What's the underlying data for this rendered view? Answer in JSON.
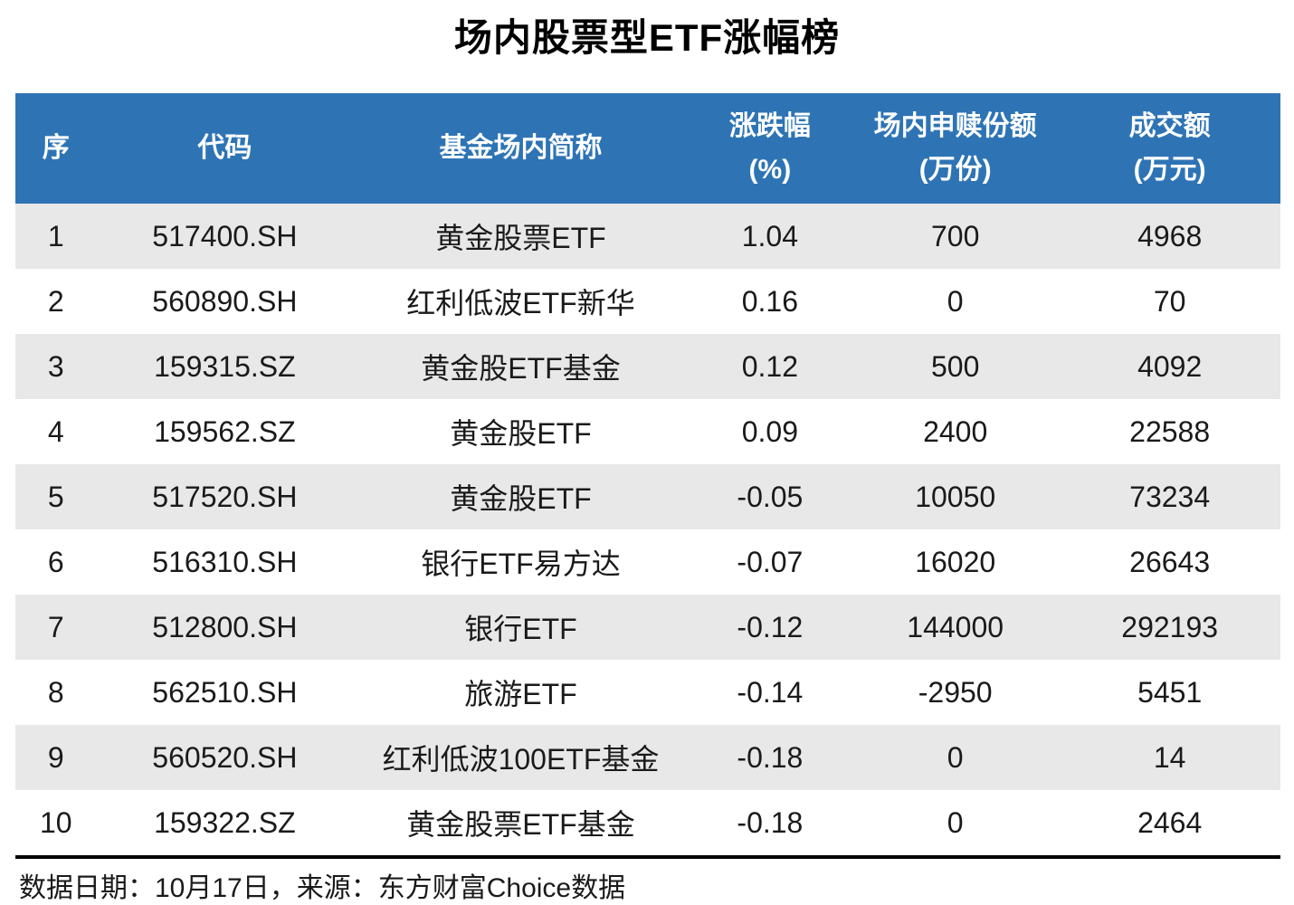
{
  "title": "场内股票型ETF涨幅榜",
  "colors": {
    "header_bg": "#2E74B5",
    "header_text": "#FFFFFF",
    "row_alt_bg": "#E8E8E8",
    "row_bg": "#FFFFFF"
  },
  "table": {
    "header": {
      "columns": [
        {
          "line1": "序",
          "line2": ""
        },
        {
          "line1": "代码",
          "line2": ""
        },
        {
          "line1": "基金场内简称",
          "line2": ""
        },
        {
          "line1": "涨跌幅",
          "line2": "(%)"
        },
        {
          "line1": "场内申赎份额",
          "line2": "(万份)"
        },
        {
          "line1": "成交额",
          "line2": "(万元)"
        }
      ]
    },
    "rows": [
      {
        "seq": "1",
        "code": "517400.SH",
        "name": "黄金股票ETF",
        "change": "1.04",
        "shares": "700",
        "turnover": "4968"
      },
      {
        "seq": "2",
        "code": "560890.SH",
        "name": "红利低波ETF新华",
        "change": "0.16",
        "shares": "0",
        "turnover": "70"
      },
      {
        "seq": "3",
        "code": "159315.SZ",
        "name": "黄金股ETF基金",
        "change": "0.12",
        "shares": "500",
        "turnover": "4092"
      },
      {
        "seq": "4",
        "code": "159562.SZ",
        "name": "黄金股ETF",
        "change": "0.09",
        "shares": "2400",
        "turnover": "22588"
      },
      {
        "seq": "5",
        "code": "517520.SH",
        "name": "黄金股ETF",
        "change": "-0.05",
        "shares": "10050",
        "turnover": "73234"
      },
      {
        "seq": "6",
        "code": "516310.SH",
        "name": "银行ETF易方达",
        "change": "-0.07",
        "shares": "16020",
        "turnover": "26643"
      },
      {
        "seq": "7",
        "code": "512800.SH",
        "name": "银行ETF",
        "change": "-0.12",
        "shares": "144000",
        "turnover": "292193"
      },
      {
        "seq": "8",
        "code": "562510.SH",
        "name": "旅游ETF",
        "change": "-0.14",
        "shares": "-2950",
        "turnover": "5451"
      },
      {
        "seq": "9",
        "code": "560520.SH",
        "name": "红利低波100ETF基金",
        "change": "-0.18",
        "shares": "0",
        "turnover": "14"
      },
      {
        "seq": "10",
        "code": "159322.SZ",
        "name": "黄金股票ETF基金",
        "change": "-0.18",
        "shares": "0",
        "turnover": "2464"
      }
    ]
  },
  "footer": {
    "source_text": "数据日期：10月17日，来源：东方财富Choice数据"
  },
  "chart_data": {
    "type": "table",
    "title": "场内股票型ETF涨幅榜",
    "columns": [
      "序",
      "代码",
      "基金场内简称",
      "涨跌幅(%)",
      "场内申赎份额(万份)",
      "成交额(万元)"
    ],
    "rows": [
      [
        1,
        "517400.SH",
        "黄金股票ETF",
        1.04,
        700,
        4968
      ],
      [
        2,
        "560890.SH",
        "红利低波ETF新华",
        0.16,
        0,
        70
      ],
      [
        3,
        "159315.SZ",
        "黄金股ETF基金",
        0.12,
        500,
        4092
      ],
      [
        4,
        "159562.SZ",
        "黄金股ETF",
        0.09,
        2400,
        22588
      ],
      [
        5,
        "517520.SH",
        "黄金股ETF",
        -0.05,
        10050,
        73234
      ],
      [
        6,
        "516310.SH",
        "银行ETF易方达",
        -0.07,
        16020,
        26643
      ],
      [
        7,
        "512800.SH",
        "银行ETF",
        -0.12,
        144000,
        292193
      ],
      [
        8,
        "562510.SH",
        "旅游ETF",
        -0.14,
        -2950,
        5451
      ],
      [
        9,
        "560520.SH",
        "红利低波100ETF基金",
        -0.18,
        0,
        14
      ],
      [
        10,
        "159322.SZ",
        "黄金股票ETF基金",
        -0.18,
        0,
        2464
      ]
    ]
  }
}
